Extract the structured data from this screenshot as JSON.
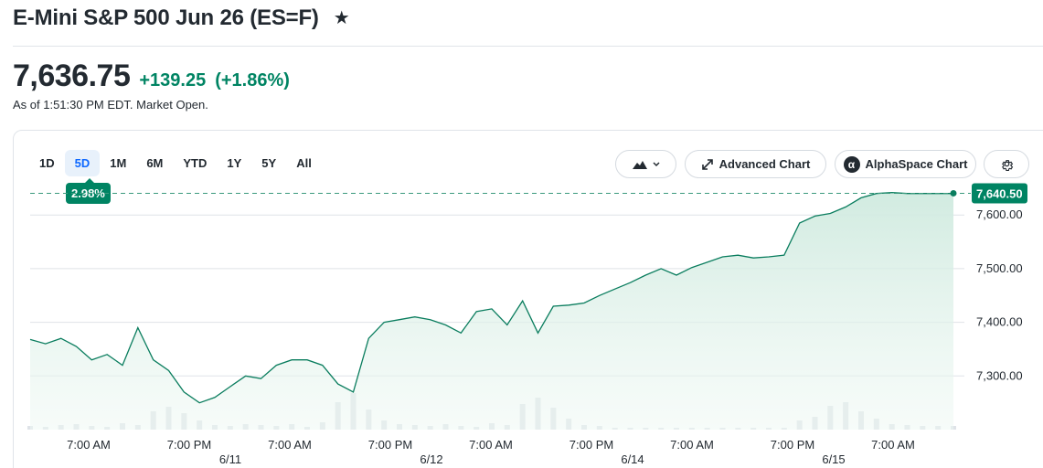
{
  "header": {
    "title": "E-Mini S&P 500 Jun 26 (ES=F)",
    "star_glyph": "★"
  },
  "quote": {
    "price": "7,636.75",
    "change": "+139.25",
    "change_pct": "(+1.86%)",
    "as_of": "As of 1:51:30 PM EDT. Market Open.",
    "accent_color": "#008463"
  },
  "range_tabs": [
    {
      "label": "1D",
      "active": false
    },
    {
      "label": "5D",
      "active": true
    },
    {
      "label": "1M",
      "active": false
    },
    {
      "label": "6M",
      "active": false
    },
    {
      "label": "YTD",
      "active": false
    },
    {
      "label": "1Y",
      "active": false
    },
    {
      "label": "5Y",
      "active": false
    },
    {
      "label": "All",
      "active": false
    }
  ],
  "range_badge": "2.98%",
  "toolbar": {
    "chart_type_icon": "mountain-chart-icon",
    "advanced_label": "Advanced Chart",
    "alphaspace_label": "AlphaSpace Chart",
    "alphaspace_glyph": "α",
    "settings_icon": "gear-icon"
  },
  "chart_data": {
    "type": "area",
    "ylim": [
      7200,
      7660
    ],
    "yticks": [
      "7,600.00",
      "7,500.00",
      "7,400.00",
      "7,300.00"
    ],
    "ytick_values": [
      7600,
      7500,
      7400,
      7300
    ],
    "last_price_label": "7,640.50",
    "last_price": 7640.5,
    "x_ticks": [
      "7:00 AM",
      "7:00 PM",
      "7:00 AM",
      "7:00 PM",
      "7:00 AM",
      "7:00 PM",
      "7:00 AM",
      "7:00 PM",
      "7:00 AM"
    ],
    "date_labels": [
      "6/11",
      "6/12",
      "6/14",
      "6/15"
    ],
    "series": [
      {
        "x_index": [
          0,
          2,
          4,
          6,
          8,
          10,
          12,
          14,
          16,
          18,
          20,
          22,
          24,
          26,
          28,
          30,
          32,
          34,
          36,
          38,
          40,
          42,
          44,
          46,
          48,
          50,
          52,
          54,
          56,
          58,
          60,
          62,
          64,
          66,
          68,
          70,
          72,
          74,
          76,
          78,
          80,
          82,
          84,
          86,
          88,
          90,
          92,
          94,
          96,
          98,
          100,
          102,
          104,
          106,
          108,
          110,
          112,
          114,
          116,
          118,
          120
        ],
        "values": [
          7368,
          7360,
          7370,
          7355,
          7330,
          7340,
          7320,
          7390,
          7330,
          7310,
          7270,
          7250,
          7260,
          7280,
          7300,
          7295,
          7320,
          7330,
          7330,
          7320,
          7285,
          7270,
          7370,
          7400,
          7405,
          7410,
          7405,
          7395,
          7380,
          7420,
          7425,
          7395,
          7440,
          7380,
          7430,
          7432,
          7436,
          7450,
          7462,
          7474,
          7488,
          7500,
          7488,
          7502,
          7512,
          7522,
          7525,
          7520,
          7522,
          7525,
          7585,
          7598,
          7603,
          7615,
          7632,
          7640,
          7642,
          7640,
          7640,
          7640,
          7640
        ]
      }
    ],
    "volume": [
      4,
      3,
      5,
      6,
      4,
      3,
      7,
      5,
      20,
      25,
      18,
      10,
      5,
      4,
      6,
      5,
      4,
      6,
      3,
      8,
      30,
      40,
      22,
      10,
      6,
      5,
      4,
      6,
      4,
      3,
      7,
      5,
      28,
      35,
      24,
      12,
      5,
      4,
      2,
      2,
      2,
      2,
      2,
      2,
      2,
      2,
      2,
      2,
      2,
      2,
      10,
      14,
      26,
      30,
      20,
      12,
      6,
      5,
      4,
      4,
      4
    ]
  },
  "colors": {
    "line": "#0a7d5e",
    "area_top": "#cfeadf",
    "grid": "#dfe3e8",
    "dashed": "#3a9a7d"
  }
}
